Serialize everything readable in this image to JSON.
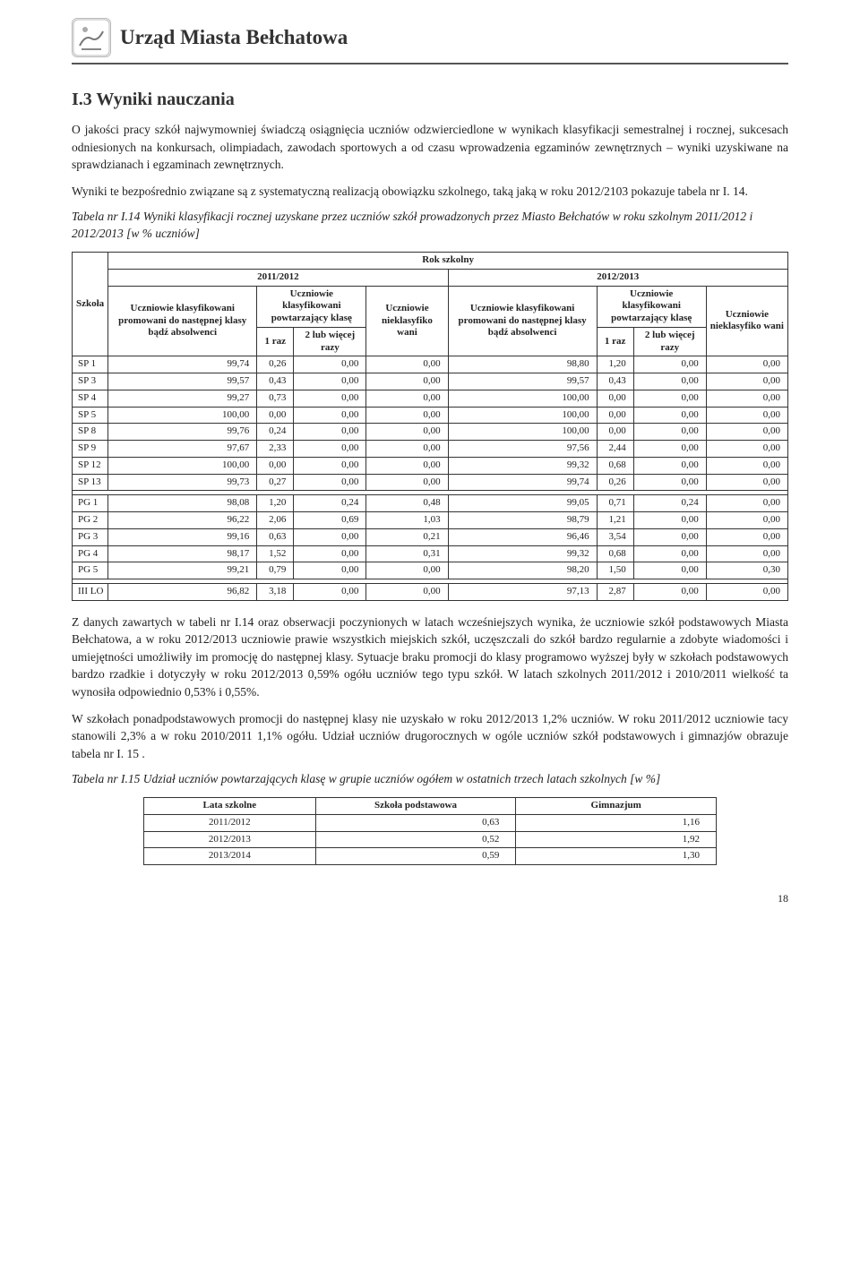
{
  "header": {
    "org": "Urząd Miasta Bełchatowa"
  },
  "section": {
    "title": "I.3 Wyniki nauczania",
    "p1": "O jakości pracy szkół najwymowniej świadczą osiągnięcia uczniów odzwierciedlone w wynikach klasyfikacji semestralnej i rocznej, sukcesach odniesionych na konkursach, olimpiadach, zawodach sportowych a od czasu wprowadzenia egzaminów zewnętrznych – wyniki uzyskiwane na sprawdzianach i egzaminach zewnętrznych.",
    "p2": "Wyniki te bezpośrednio związane są z systematyczną realizacją obowiązku szkolnego, taką jaką w roku 2012/2103 pokazuje tabela nr I. 14."
  },
  "table1": {
    "caption": "Tabela nr I.14 Wyniki klasyfikacji rocznej uzyskane przez uczniów szkół prowadzonych przez Miasto Bełchatów w roku szkolnym 2011/2012 i 2012/2013 [w % uczniów]",
    "top_header": "Rok szkolny",
    "year_a": "2011/2012",
    "year_b": "2012/2013",
    "col_school": "Szkoła",
    "col_promoted": "Uczniowie klasyfikowani promowani do następnej klasy bądź absolwenci",
    "col_repeat": "Uczniowie klasyfikowani powtarzający klasę",
    "col_once": "1 raz",
    "col_more": "2 lub więcej razy",
    "col_unclassified": "Uczniowie nieklasyfiko wani",
    "rows_sp": [
      {
        "s": "SP 1",
        "a": "99,74",
        "b": "0,26",
        "c": "0,00",
        "d": "0,00",
        "e": "98,80",
        "f": "1,20",
        "g": "0,00",
        "h": "0,00"
      },
      {
        "s": "SP 3",
        "a": "99,57",
        "b": "0,43",
        "c": "0,00",
        "d": "0,00",
        "e": "99,57",
        "f": "0,43",
        "g": "0,00",
        "h": "0,00"
      },
      {
        "s": "SP 4",
        "a": "99,27",
        "b": "0,73",
        "c": "0,00",
        "d": "0,00",
        "e": "100,00",
        "f": "0,00",
        "g": "0,00",
        "h": "0,00"
      },
      {
        "s": "SP 5",
        "a": "100,00",
        "b": "0,00",
        "c": "0,00",
        "d": "0,00",
        "e": "100,00",
        "f": "0,00",
        "g": "0,00",
        "h": "0,00"
      },
      {
        "s": "SP 8",
        "a": "99,76",
        "b": "0,24",
        "c": "0,00",
        "d": "0,00",
        "e": "100,00",
        "f": "0,00",
        "g": "0,00",
        "h": "0,00"
      },
      {
        "s": "SP 9",
        "a": "97,67",
        "b": "2,33",
        "c": "0,00",
        "d": "0,00",
        "e": "97,56",
        "f": "2,44",
        "g": "0,00",
        "h": "0,00"
      },
      {
        "s": "SP 12",
        "a": "100,00",
        "b": "0,00",
        "c": "0,00",
        "d": "0,00",
        "e": "99,32",
        "f": "0,68",
        "g": "0,00",
        "h": "0,00"
      },
      {
        "s": "SP 13",
        "a": "99,73",
        "b": "0,27",
        "c": "0,00",
        "d": "0,00",
        "e": "99,74",
        "f": "0,26",
        "g": "0,00",
        "h": "0,00"
      }
    ],
    "rows_pg": [
      {
        "s": "PG 1",
        "a": "98,08",
        "b": "1,20",
        "c": "0,24",
        "d": "0,48",
        "e": "99,05",
        "f": "0,71",
        "g": "0,24",
        "h": "0,00"
      },
      {
        "s": "PG 2",
        "a": "96,22",
        "b": "2,06",
        "c": "0,69",
        "d": "1,03",
        "e": "98,79",
        "f": "1,21",
        "g": "0,00",
        "h": "0,00"
      },
      {
        "s": "PG 3",
        "a": "99,16",
        "b": "0,63",
        "c": "0,00",
        "d": "0,21",
        "e": "96,46",
        "f": "3,54",
        "g": "0,00",
        "h": "0,00"
      },
      {
        "s": "PG 4",
        "a": "98,17",
        "b": "1,52",
        "c": "0,00",
        "d": "0,31",
        "e": "99,32",
        "f": "0,68",
        "g": "0,00",
        "h": "0,00"
      },
      {
        "s": "PG 5",
        "a": "99,21",
        "b": "0,79",
        "c": "0,00",
        "d": "0,00",
        "e": "98,20",
        "f": "1,50",
        "g": "0,00",
        "h": "0,30"
      }
    ],
    "rows_lo": [
      {
        "s": "III LO",
        "a": "96,82",
        "b": "3,18",
        "c": "0,00",
        "d": "0,00",
        "e": "97,13",
        "f": "2,87",
        "g": "0,00",
        "h": "0,00"
      }
    ]
  },
  "body2": {
    "p1": "Z danych zawartych w tabeli nr I.14 oraz obserwacji poczynionych w latach wcześniejszych wynika, że uczniowie szkół podstawowych Miasta Bełchatowa, a w roku 2012/2013 uczniowie prawie wszystkich miejskich szkół, uczęszczali do szkół bardzo regularnie a zdobyte wiadomości i umiejętności umożliwiły im promocję do następnej klasy. Sytuacje braku promocji do klasy programowo wyższej były w szkołach podstawowych bardzo rzadkie i dotyczyły w roku 2012/2013 0,59% ogółu uczniów tego typu szkół. W latach szkolnych 2011/2012 i 2010/2011 wielkość ta wynosiła odpowiednio 0,53% i 0,55%.",
    "p2": "W szkołach ponadpodstawowych promocji do następnej klasy nie uzyskało w roku 2012/2013 1,2% uczniów. W roku 2011/2012 uczniowie tacy stanowili 2,3% a w roku 2010/2011 1,1% ogółu. Udział uczniów drugorocznych w ogóle uczniów szkół podstawowych i gimnazjów obrazuje tabela nr I. 15 ."
  },
  "table2": {
    "caption": "Tabela nr I.15 Udział uczniów powtarzających klasę w grupie uczniów ogółem w ostatnich trzech latach szkolnych [w %]",
    "col_years": "Lata szkolne",
    "col_sp": "Szkoła podstawowa",
    "col_gim": "Gimnazjum",
    "rows": [
      {
        "y": "2011/2012",
        "sp": "0,63",
        "g": "1,16"
      },
      {
        "y": "2012/2013",
        "sp": "0,52",
        "g": "1,92"
      },
      {
        "y": "2013/2014",
        "sp": "0,59",
        "g": "1,30"
      }
    ]
  },
  "page_number": "18"
}
